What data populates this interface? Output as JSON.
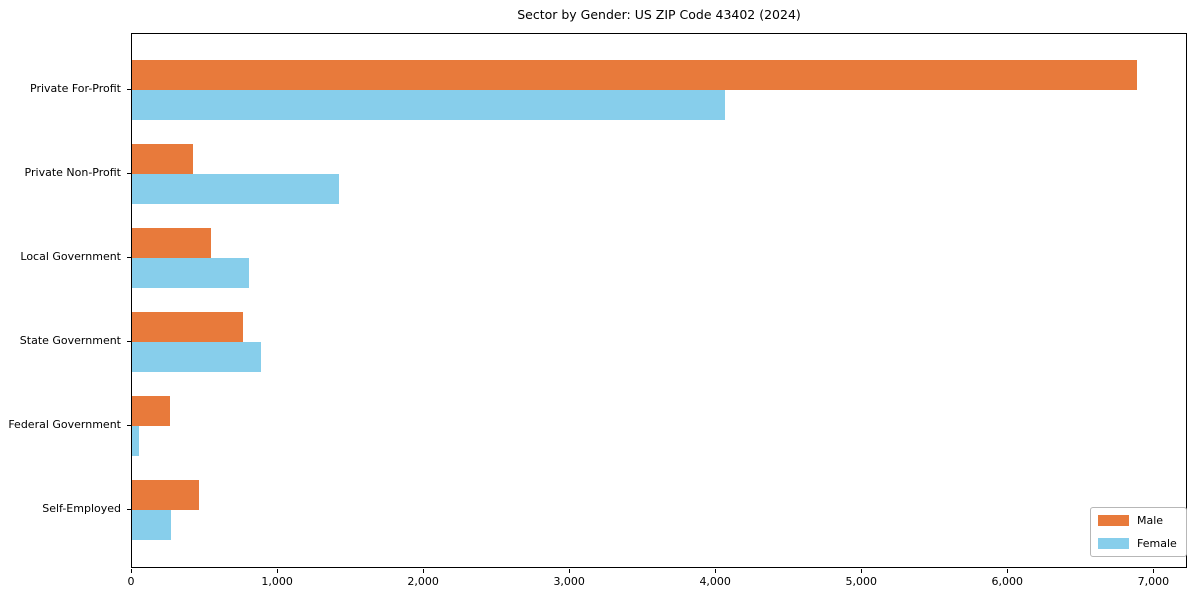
{
  "chart_data": {
    "type": "bar",
    "orientation": "horizontal",
    "title": "Sector by Gender: US ZIP Code 43402 (2024)",
    "categories": [
      "Private For-Profit",
      "Private Non-Profit",
      "Local Government",
      "State Government",
      "Federal Government",
      "Self-Employed"
    ],
    "series": [
      {
        "name": "Male",
        "color": "#E87A3B",
        "values": [
          6880,
          415,
          540,
          760,
          260,
          455
        ]
      },
      {
        "name": "Female",
        "color": "#87CEEB",
        "values": [
          4060,
          1420,
          800,
          885,
          45,
          265
        ]
      }
    ],
    "xlim": [
      0,
      7230
    ],
    "x_ticks": [
      0,
      1000,
      2000,
      3000,
      4000,
      5000,
      6000,
      7000
    ],
    "x_tick_labels": [
      "0",
      "1,000",
      "2,000",
      "3,000",
      "4,000",
      "5,000",
      "6,000",
      "7,000"
    ],
    "xlabel": "",
    "ylabel": "",
    "grid": false,
    "legend": {
      "position": "lower right",
      "entries": [
        "Male",
        "Female"
      ]
    }
  }
}
